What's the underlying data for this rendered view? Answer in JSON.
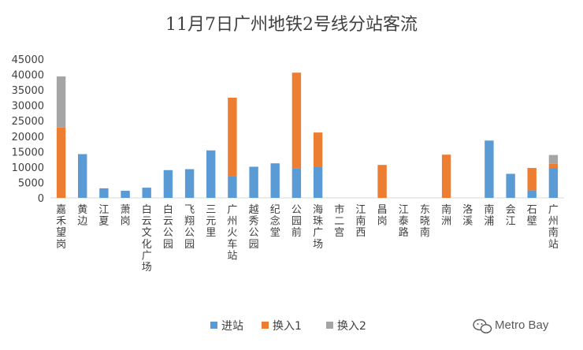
{
  "chart_data": {
    "type": "bar",
    "stacked": true,
    "title": "11月7日广州地铁2号线分站客流",
    "categories": [
      "嘉禾望岗",
      "黄边",
      "江夏",
      "萧岗",
      "白云文化广场",
      "白云公园",
      "飞翔公园",
      "三元里",
      "广州火车站",
      "越秀公园",
      "纪念堂",
      "公园前",
      "海珠广场",
      "市二宫",
      "江南西",
      "昌岗",
      "江泰路",
      "东晓南",
      "南洲",
      "洛溪",
      "南浦",
      "会江",
      "石壁",
      "广州南站"
    ],
    "series": [
      {
        "name": "进站",
        "color": "#5b9bd5",
        "values": [
          0,
          14200,
          3100,
          2300,
          3300,
          9000,
          9300,
          15400,
          7000,
          10100,
          11200,
          9600,
          10200,
          0,
          0,
          0,
          0,
          0,
          0,
          0,
          18600,
          7800,
          2400,
          9600
        ]
      },
      {
        "name": "换入1",
        "color": "#ed7d31",
        "values": [
          22800,
          0,
          0,
          0,
          0,
          0,
          0,
          0,
          25500,
          0,
          0,
          31000,
          11000,
          0,
          0,
          10700,
          0,
          0,
          14000,
          0,
          0,
          0,
          7300,
          1400
        ]
      },
      {
        "name": "换入2",
        "color": "#a5a5a5",
        "values": [
          16600,
          0,
          0,
          0,
          0,
          0,
          0,
          0,
          0,
          0,
          0,
          0,
          0,
          0,
          0,
          0,
          0,
          0,
          0,
          0,
          0,
          0,
          0,
          2900
        ]
      }
    ],
    "ylim": [
      0,
      45000
    ],
    "yticks": [
      0,
      5000,
      10000,
      15000,
      20000,
      25000,
      30000,
      35000,
      40000,
      45000
    ],
    "grid": false,
    "legend_position": "bottom"
  },
  "watermark": {
    "text": "Metro Bay",
    "icon": "wechat-icon"
  }
}
